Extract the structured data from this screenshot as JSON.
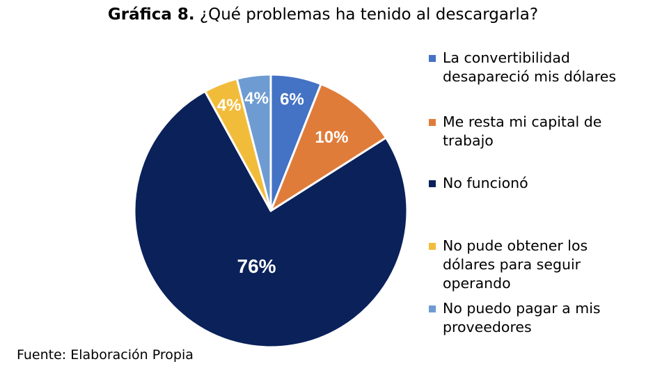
{
  "chart_data": {
    "type": "pie",
    "title_prefix": "Gráfica 8.",
    "title": "¿Qué problemas ha tenido al descargarla?",
    "source": "Fuente: Elaboración Propia",
    "legend_position": "right",
    "slices": [
      {
        "name": "La convertibilidad desapareció mis dólares",
        "value": 6,
        "label": "6%",
        "color": "#4472C4"
      },
      {
        "name": "Me resta mi capital de trabajo",
        "value": 10,
        "label": "10%",
        "color": "#E07C3A"
      },
      {
        "name": "No funcionó",
        "value": 76,
        "label": "76%",
        "color": "#0A215A"
      },
      {
        "name": "No pude obtener los dólares para seguir operando",
        "value": 4,
        "label": "4%",
        "color": "#F2BC3B"
      },
      {
        "name": "No puedo pagar a mis proveedores",
        "value": 4,
        "label": "4%",
        "color": "#6E9CD2"
      }
    ]
  }
}
